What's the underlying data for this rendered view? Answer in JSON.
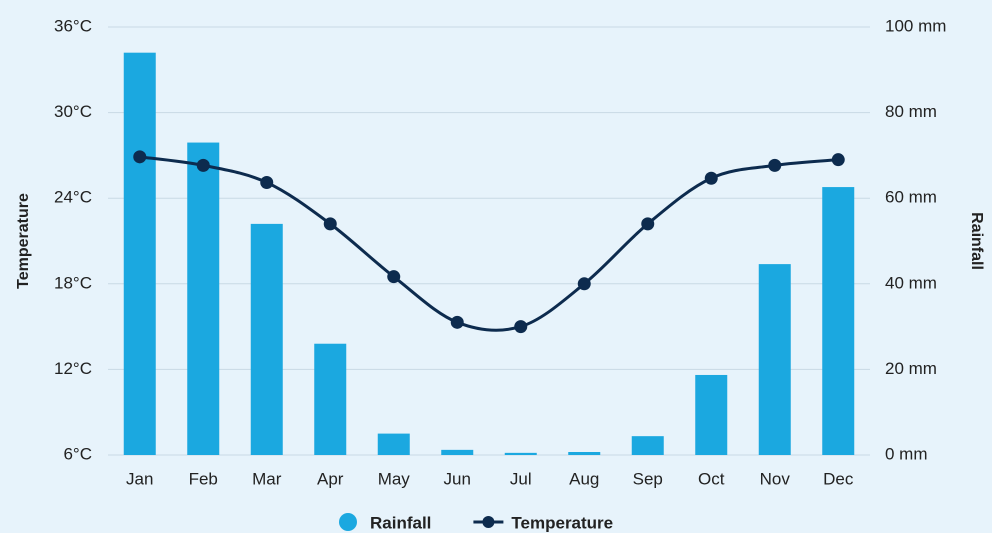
{
  "chart_data": {
    "type": "combo",
    "categories": [
      "Jan",
      "Feb",
      "Mar",
      "Apr",
      "May",
      "Jun",
      "Jul",
      "Aug",
      "Sep",
      "Oct",
      "Nov",
      "Dec"
    ],
    "y_label": "Temperature",
    "y2_label": "Rainfall",
    "ylim": [
      6,
      36
    ],
    "yticks": [
      {
        "value": 6,
        "label": "6°C"
      },
      {
        "value": 12,
        "label": "12°C"
      },
      {
        "value": 18,
        "label": "18°C"
      },
      {
        "value": 24,
        "label": "24°C"
      },
      {
        "value": 30,
        "label": "30°C"
      },
      {
        "value": 36,
        "label": "36°C"
      }
    ],
    "y2lim": [
      0,
      100
    ],
    "y2ticks": [
      {
        "value": 0,
        "label": "0 mm"
      },
      {
        "value": 20,
        "label": "20 mm"
      },
      {
        "value": 40,
        "label": "40 mm"
      },
      {
        "value": 60,
        "label": "60 mm"
      },
      {
        "value": 80,
        "label": "80 mm"
      },
      {
        "value": 100,
        "label": "100 mm"
      }
    ],
    "grid": true,
    "legend": "bottom",
    "series": [
      {
        "name": "Rainfall",
        "type": "bar",
        "axis": "y2",
        "color": "#1ba8e0",
        "values": [
          94,
          73,
          54,
          26,
          5,
          1.2,
          0.5,
          0.7,
          4.4,
          18.7,
          44.6,
          62.6
        ]
      },
      {
        "name": "Temperature",
        "type": "line",
        "color": "#0d2b4e",
        "values": [
          26.9,
          26.3,
          25.1,
          22.2,
          18.5,
          15.3,
          15.0,
          18.0,
          22.2,
          25.4,
          26.3,
          26.7
        ]
      }
    ]
  }
}
